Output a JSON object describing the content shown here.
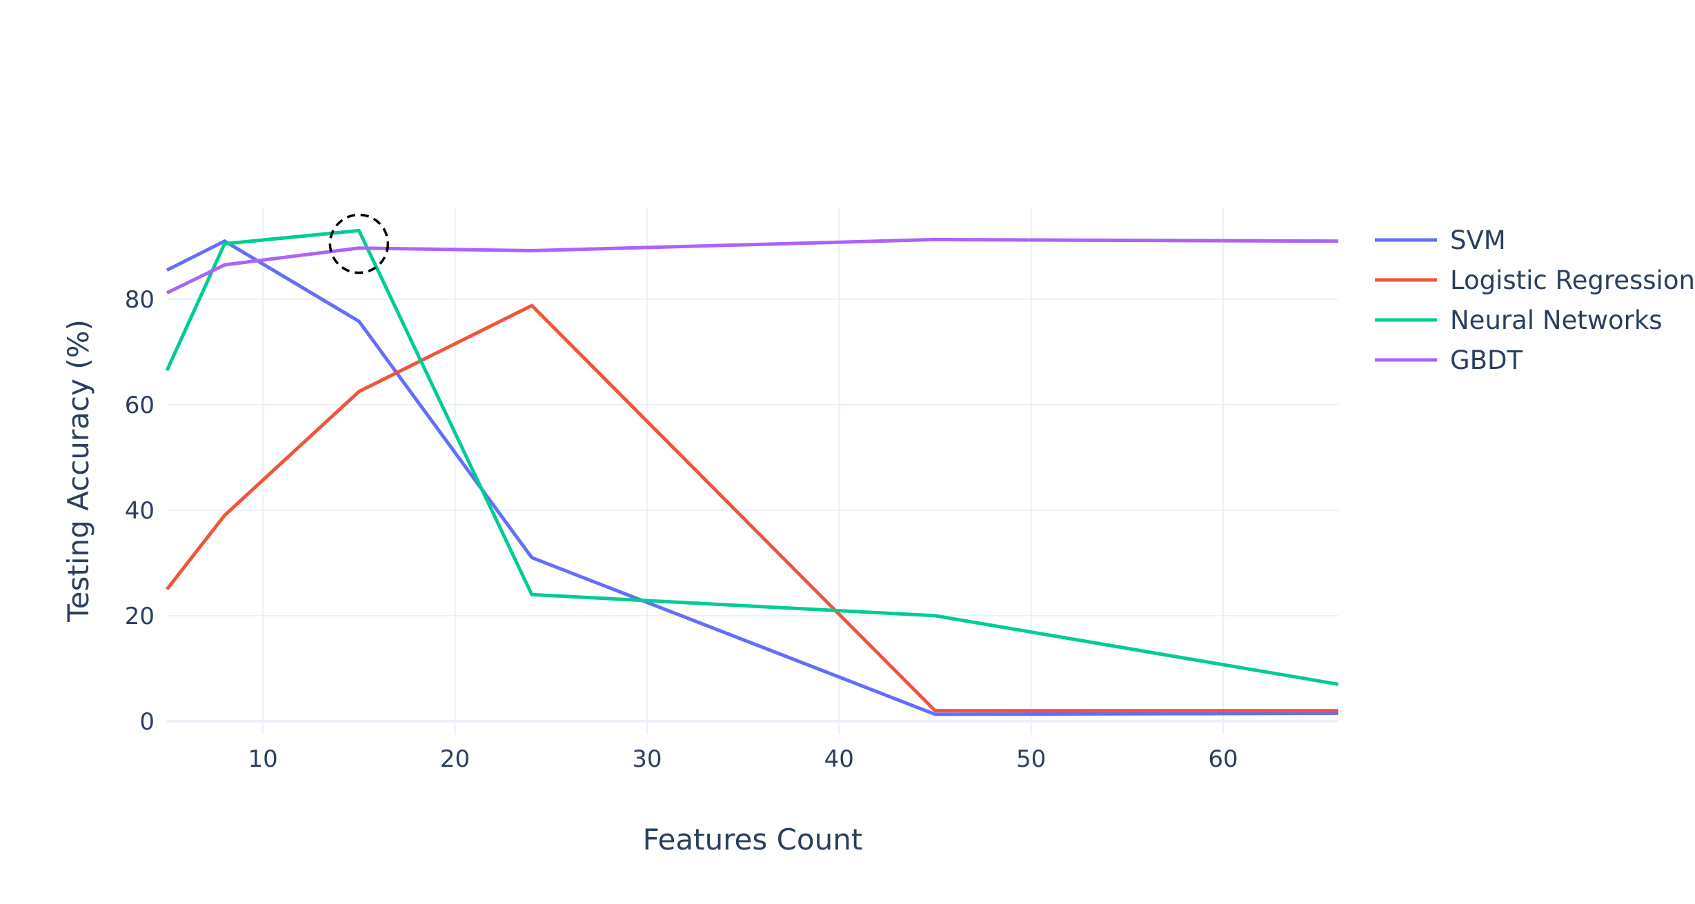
{
  "chart_data": {
    "type": "line",
    "title": "",
    "xlabel": "Features Count",
    "ylabel": "Testing Accuracy (%)",
    "xlim": [
      5,
      66
    ],
    "ylim": [
      -2.5,
      97.5
    ],
    "x_ticks": [
      10,
      20,
      30,
      40,
      50,
      60
    ],
    "y_ticks": [
      0,
      20,
      40,
      60,
      80
    ],
    "grid": true,
    "legend_position": "right",
    "x": [
      5,
      8,
      15,
      24,
      45,
      66
    ],
    "series": [
      {
        "name": "SVM",
        "color": "#636efa",
        "values": [
          85.5,
          91,
          75.8,
          31,
          1.3,
          1.5
        ]
      },
      {
        "name": "Logistic Regression",
        "color": "#ef553b",
        "values": [
          25,
          39,
          62.5,
          78.8,
          2,
          2
        ]
      },
      {
        "name": "Neural Networks",
        "color": "#00cc96",
        "values": [
          66.5,
          90.5,
          93,
          24,
          20,
          7
        ]
      },
      {
        "name": "GBDT",
        "color": "#ab63fa",
        "values": [
          81.2,
          86.5,
          89.7,
          89.2,
          91.3,
          91
        ]
      }
    ],
    "annotations": [
      {
        "shape": "dashed-circle",
        "x": 15,
        "y": 90.5,
        "color": "#000000"
      }
    ]
  }
}
